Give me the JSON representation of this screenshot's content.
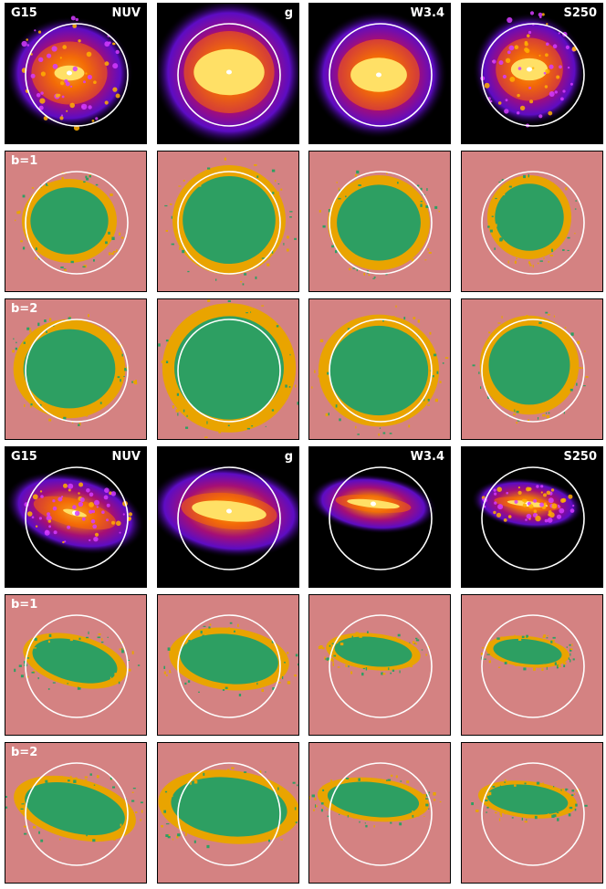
{
  "colors": {
    "background": "#d48282",
    "mask_outer": "#e9a400",
    "mask_inner": "#2d9f62",
    "aperture": "#ffffff",
    "image_bg": "#000000"
  },
  "galaxies": [
    {
      "name": "G15",
      "shape": "round",
      "bands": [
        "NUV",
        "g",
        "W3.4",
        "S250"
      ],
      "mask_rows": [
        "b=1",
        "b=2"
      ]
    },
    {
      "name": "G15",
      "shape": "edge-on",
      "bands": [
        "NUV",
        "g",
        "W3.4",
        "S250"
      ],
      "mask_rows": [
        "b=1",
        "b=2"
      ]
    }
  ]
}
